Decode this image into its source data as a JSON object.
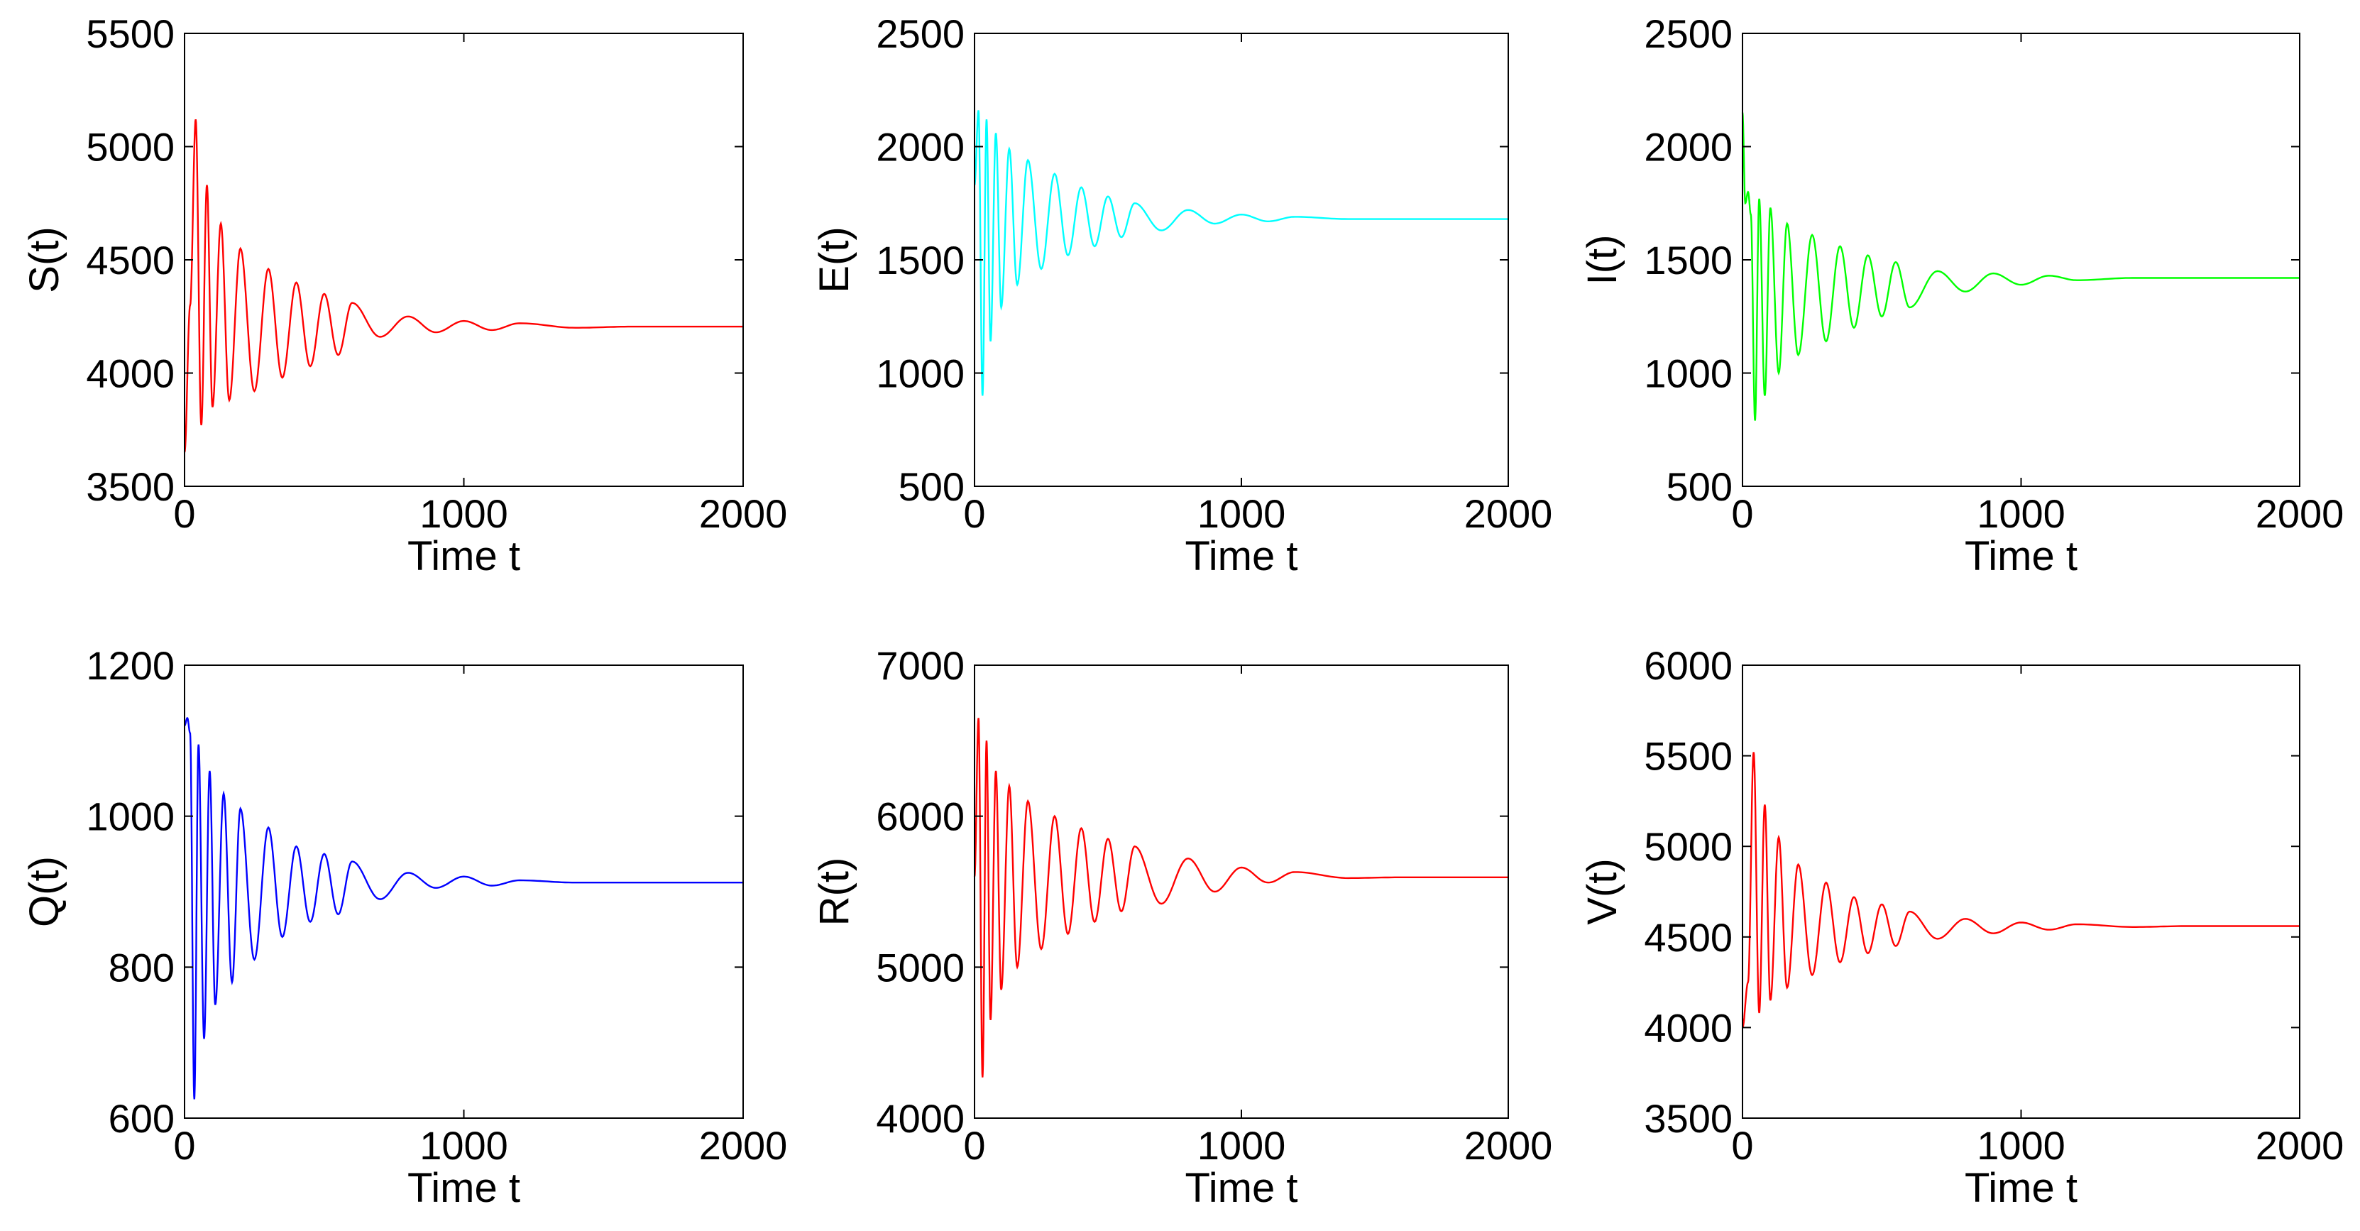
{
  "chart_data": [
    {
      "type": "line",
      "ylabel": "S(t)",
      "xlabel": "Time t",
      "xlim": [
        0,
        2000
      ],
      "ylim": [
        3500,
        5500
      ],
      "xticks": [
        "0",
        "1000",
        "2000"
      ],
      "yticks": [
        "3500",
        "4000",
        "4500",
        "5000",
        "5500"
      ],
      "grid": false,
      "color": "#ff0000",
      "series": [
        {
          "x": [
            0,
            20,
            40,
            60,
            80,
            100,
            130,
            160,
            200,
            250,
            300,
            350,
            400,
            450,
            500,
            550,
            600,
            700,
            800,
            900,
            1000,
            1100,
            1200,
            1400,
            1600,
            1800,
            2000
          ],
          "y": [
            3650,
            4300,
            5120,
            3770,
            4830,
            3850,
            4660,
            3880,
            4550,
            3920,
            4460,
            3980,
            4400,
            4030,
            4350,
            4080,
            4310,
            4160,
            4250,
            4180,
            4230,
            4190,
            4220,
            4200,
            4205,
            4205,
            4205
          ]
        }
      ]
    },
    {
      "type": "line",
      "ylabel": "E(t)",
      "xlabel": "Time t",
      "xlim": [
        0,
        2000
      ],
      "ylim": [
        500,
        2500
      ],
      "xticks": [
        "0",
        "1000",
        "2000"
      ],
      "yticks": [
        "500",
        "1000",
        "1500",
        "2000",
        "2500"
      ],
      "grid": false,
      "color": "#00ffff",
      "series": [
        {
          "x": [
            0,
            15,
            30,
            45,
            60,
            80,
            100,
            130,
            160,
            200,
            250,
            300,
            350,
            400,
            450,
            500,
            550,
            600,
            700,
            800,
            900,
            1000,
            1100,
            1200,
            1400,
            1600,
            1800,
            2000
          ],
          "y": [
            1830,
            2160,
            900,
            2120,
            1140,
            2060,
            1290,
            1990,
            1390,
            1940,
            1460,
            1880,
            1520,
            1820,
            1560,
            1780,
            1600,
            1750,
            1630,
            1720,
            1660,
            1700,
            1670,
            1690,
            1680,
            1680,
            1680,
            1680
          ]
        }
      ]
    },
    {
      "type": "line",
      "ylabel": "I(t)",
      "xlabel": "Time t",
      "xlim": [
        0,
        2000
      ],
      "ylim": [
        500,
        2500
      ],
      "xticks": [
        "0",
        "1000",
        "2000"
      ],
      "yticks": [
        "500",
        "1000",
        "1500",
        "2000",
        "2500"
      ],
      "grid": false,
      "color": "#00ff00",
      "series": [
        {
          "x": [
            0,
            10,
            20,
            30,
            45,
            60,
            80,
            100,
            130,
            160,
            200,
            250,
            300,
            350,
            400,
            450,
            500,
            550,
            600,
            700,
            800,
            900,
            1000,
            1100,
            1200,
            1400,
            1600,
            1800,
            2000
          ],
          "y": [
            2150,
            1750,
            1800,
            1700,
            790,
            1770,
            900,
            1730,
            1000,
            1660,
            1080,
            1610,
            1140,
            1560,
            1200,
            1520,
            1250,
            1490,
            1290,
            1450,
            1360,
            1440,
            1390,
            1430,
            1410,
            1420,
            1420,
            1420,
            1420
          ]
        }
      ]
    },
    {
      "type": "line",
      "ylabel": "Q(t)",
      "xlabel": "Time t",
      "xlim": [
        0,
        2000
      ],
      "ylim": [
        600,
        1200
      ],
      "xticks": [
        "0",
        "1000",
        "2000"
      ],
      "yticks": [
        "600",
        "800",
        "1000",
        "1200"
      ],
      "grid": false,
      "color": "#0000ff",
      "series": [
        {
          "x": [
            0,
            10,
            20,
            35,
            50,
            70,
            90,
            110,
            140,
            170,
            200,
            250,
            300,
            350,
            400,
            450,
            500,
            550,
            600,
            700,
            800,
            900,
            1000,
            1100,
            1200,
            1400,
            1600,
            1800,
            2000
          ],
          "y": [
            1120,
            1130,
            1110,
            625,
            1095,
            705,
            1060,
            750,
            1030,
            780,
            1010,
            810,
            985,
            840,
            960,
            860,
            950,
            870,
            940,
            890,
            925,
            905,
            920,
            908,
            915,
            912,
            912,
            912,
            912
          ]
        }
      ]
    },
    {
      "type": "line",
      "ylabel": "R(t)",
      "xlabel": "Time t",
      "xlim": [
        0,
        2000
      ],
      "ylim": [
        4000,
        7000
      ],
      "xticks": [
        "0",
        "1000",
        "2000"
      ],
      "yticks": [
        "4000",
        "5000",
        "6000",
        "7000"
      ],
      "grid": false,
      "color": "#ff0000",
      "series": [
        {
          "x": [
            0,
            15,
            30,
            45,
            60,
            80,
            100,
            130,
            160,
            200,
            250,
            300,
            350,
            400,
            450,
            500,
            550,
            600,
            700,
            800,
            900,
            1000,
            1100,
            1200,
            1400,
            1600,
            1800,
            2000
          ],
          "y": [
            5600,
            6650,
            4270,
            6500,
            4650,
            6300,
            4850,
            6200,
            5000,
            6100,
            5120,
            6000,
            5220,
            5920,
            5300,
            5850,
            5370,
            5800,
            5420,
            5720,
            5500,
            5660,
            5560,
            5630,
            5590,
            5595,
            5595,
            5595
          ]
        }
      ]
    },
    {
      "type": "line",
      "ylabel": "V(t)",
      "xlabel": "Time t",
      "xlim": [
        0,
        2000
      ],
      "ylim": [
        3500,
        6000
      ],
      "xticks": [
        "0",
        "1000",
        "2000"
      ],
      "yticks": [
        "3500",
        "4000",
        "4500",
        "5000",
        "5500",
        "6000"
      ],
      "grid": false,
      "color": "#ff0000",
      "series": [
        {
          "x": [
            0,
            20,
            40,
            60,
            80,
            100,
            130,
            160,
            200,
            250,
            300,
            350,
            400,
            450,
            500,
            550,
            600,
            700,
            800,
            900,
            1000,
            1100,
            1200,
            1400,
            1600,
            1800,
            2000
          ],
          "y": [
            4000,
            4250,
            5520,
            4080,
            5230,
            4150,
            5050,
            4220,
            4900,
            4290,
            4800,
            4360,
            4720,
            4410,
            4680,
            4450,
            4640,
            4490,
            4600,
            4520,
            4580,
            4540,
            4570,
            4555,
            4560,
            4560,
            4560
          ]
        }
      ]
    }
  ]
}
